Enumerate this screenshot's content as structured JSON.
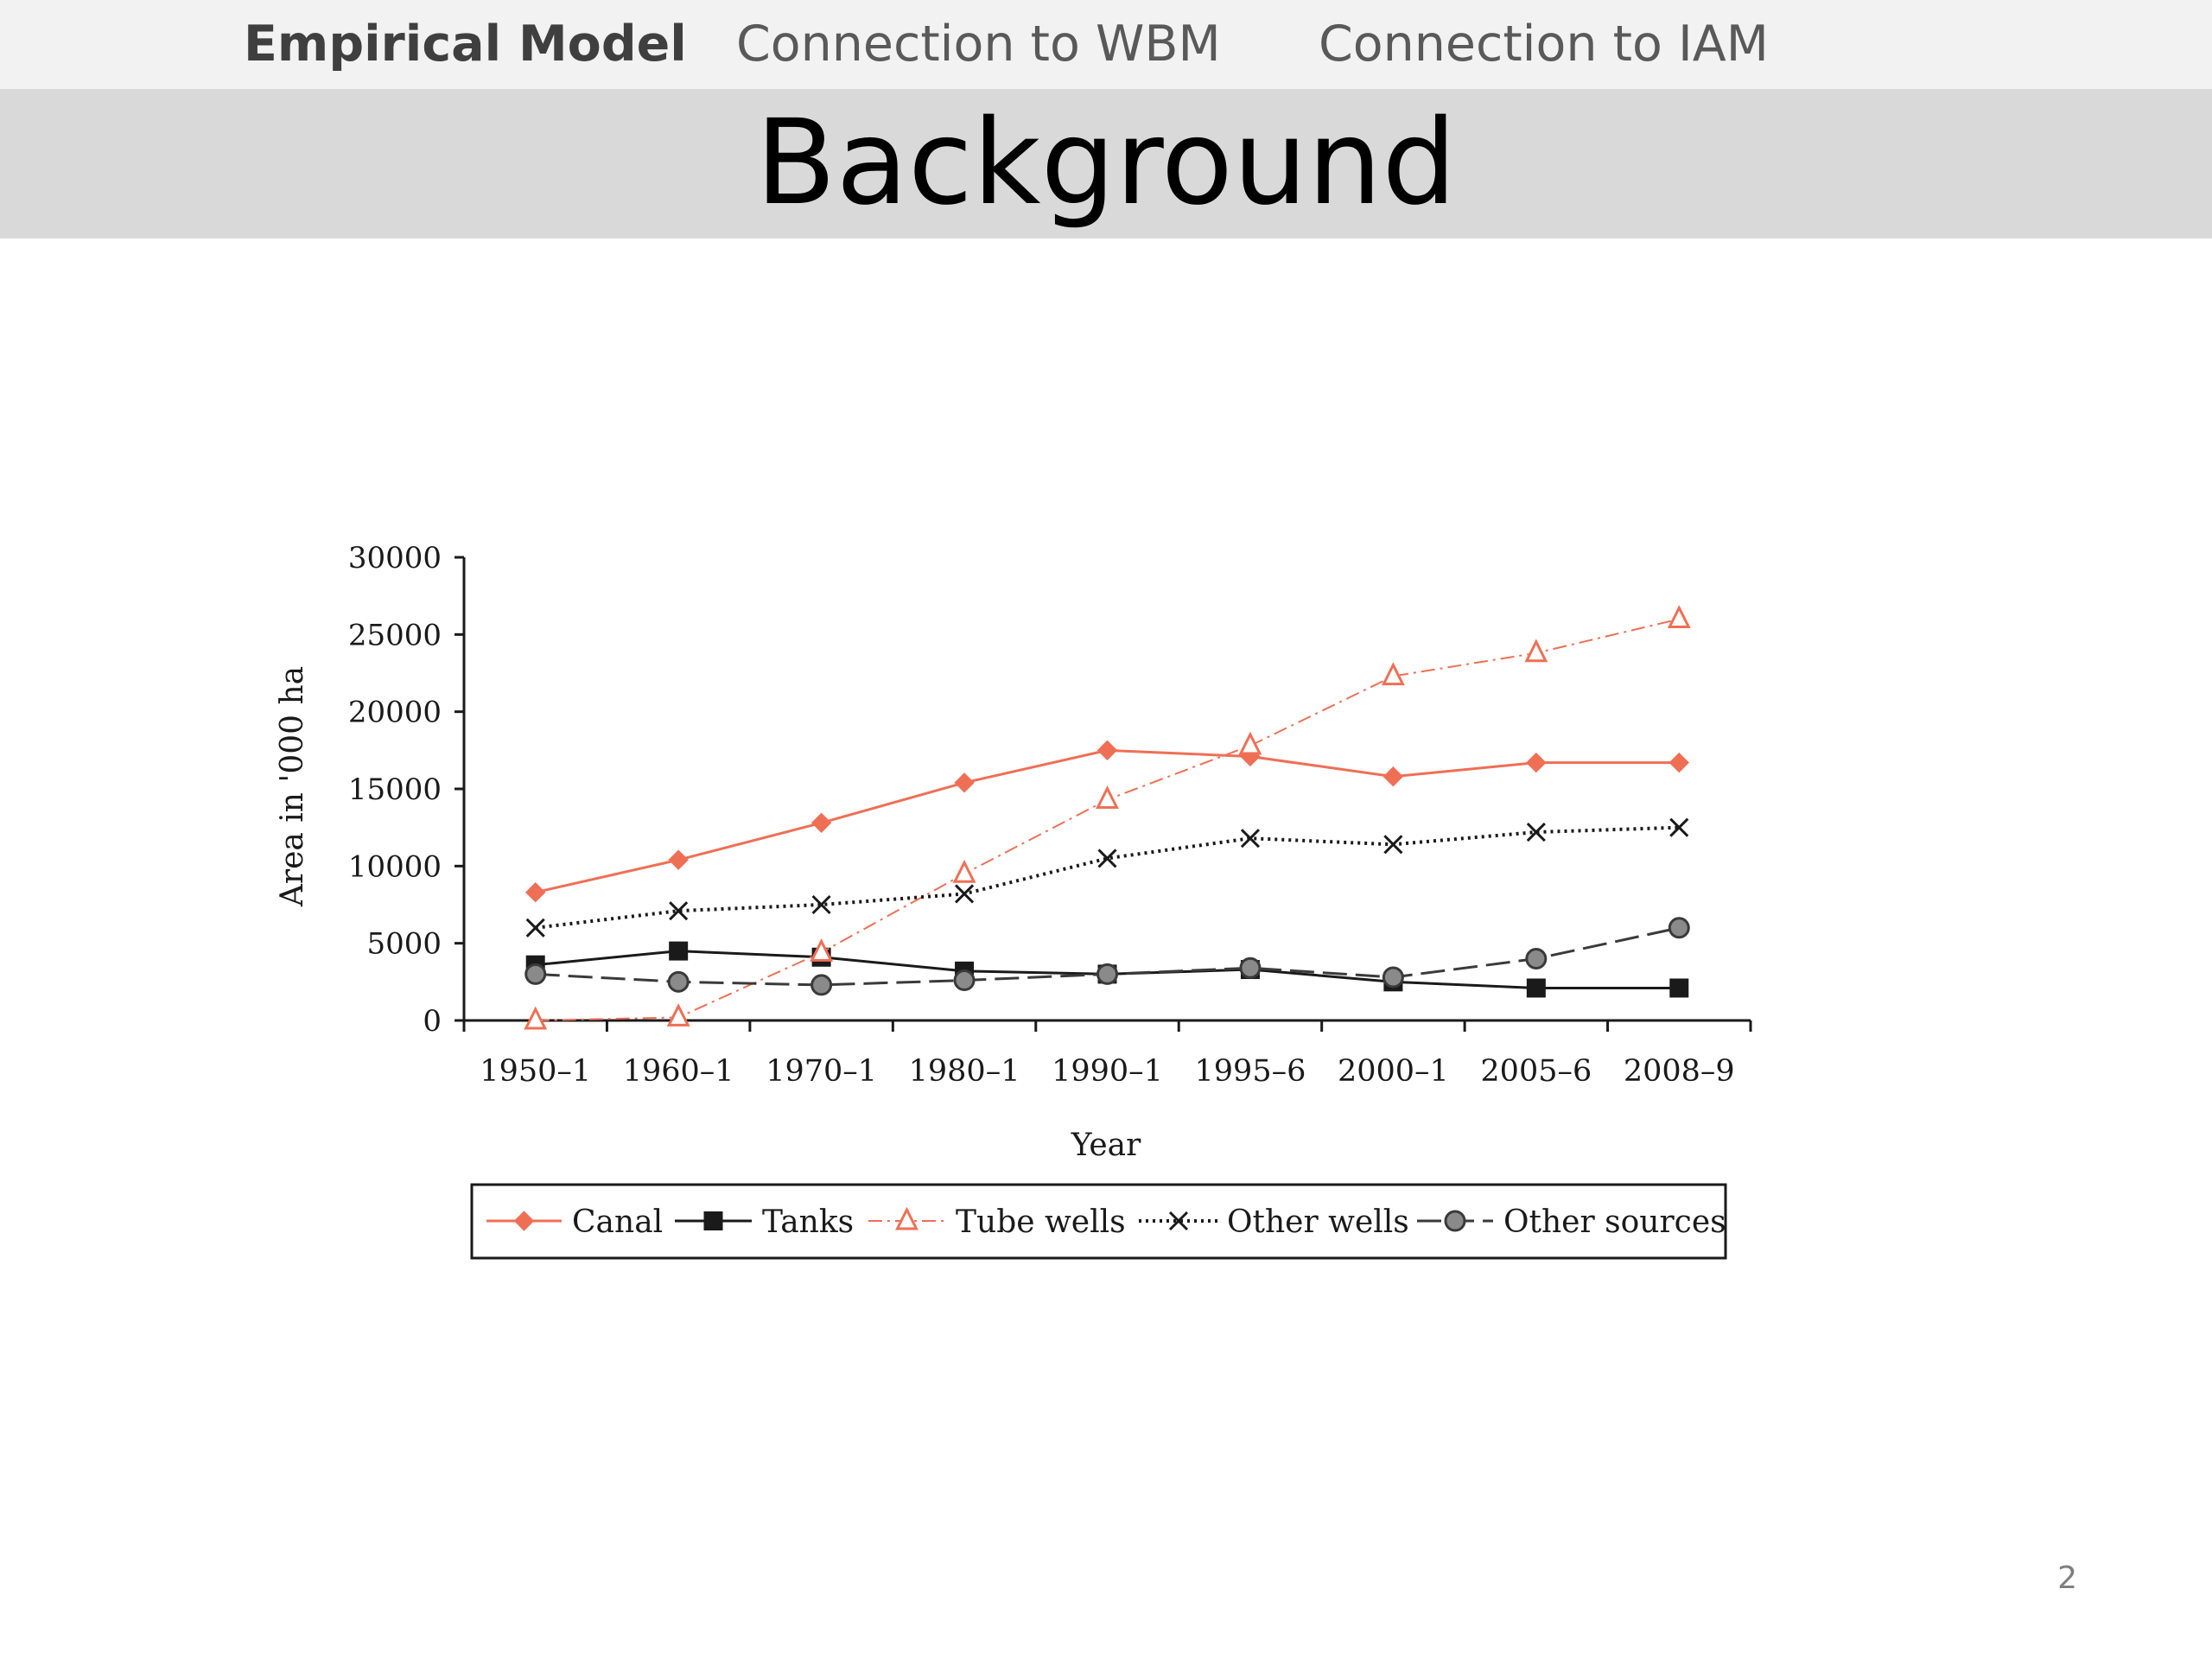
{
  "nav": {
    "items": [
      {
        "label": "Empirical Model",
        "active": true
      },
      {
        "label": "Connection to WBM",
        "active": false
      },
      {
        "label": "Connection to IAM",
        "active": false
      }
    ]
  },
  "slide": {
    "title": "Background",
    "page_number": "2"
  },
  "chart_data": {
    "type": "line",
    "xlabel": "Year",
    "ylabel": "Area in '000 ha",
    "categories": [
      "1950–1",
      "1960–1",
      "1970–1",
      "1980–1",
      "1990–1",
      "1995–6",
      "2000–1",
      "2005–6",
      "2008–9"
    ],
    "ylim": [
      0,
      30000
    ],
    "yticks": [
      0,
      5000,
      10000,
      15000,
      20000,
      25000,
      30000
    ],
    "grid": false,
    "legend_position": "bottom",
    "series": [
      {
        "name": "Canal",
        "color": "#ef6f55",
        "marker": "diamond",
        "line": "solid",
        "values": [
          8300,
          10400,
          12800,
          15400,
          17500,
          17100,
          15800,
          16700,
          16700
        ]
      },
      {
        "name": "Tanks",
        "color": "#1a1a1a",
        "marker": "square",
        "line": "solid",
        "values": [
          3600,
          4500,
          4100,
          3200,
          3000,
          3300,
          2500,
          2100,
          2100
        ]
      },
      {
        "name": "Tube wells",
        "color": "#ef6f55",
        "marker": "triangle-open",
        "line": "dashdot",
        "values": [
          0,
          200,
          4400,
          9500,
          14300,
          17800,
          22300,
          23800,
          26000
        ]
      },
      {
        "name": "Other wells",
        "color": "#1a1a1a",
        "marker": "x",
        "line": "dotted",
        "values": [
          6000,
          7100,
          7500,
          8200,
          10500,
          11800,
          11400,
          12200,
          12500
        ]
      },
      {
        "name": "Other sources",
        "color": "#3a3a3a",
        "marker": "circle",
        "line": "longdash",
        "values": [
          3000,
          2500,
          2300,
          2600,
          3000,
          3400,
          2800,
          4000,
          6000
        ]
      }
    ]
  }
}
